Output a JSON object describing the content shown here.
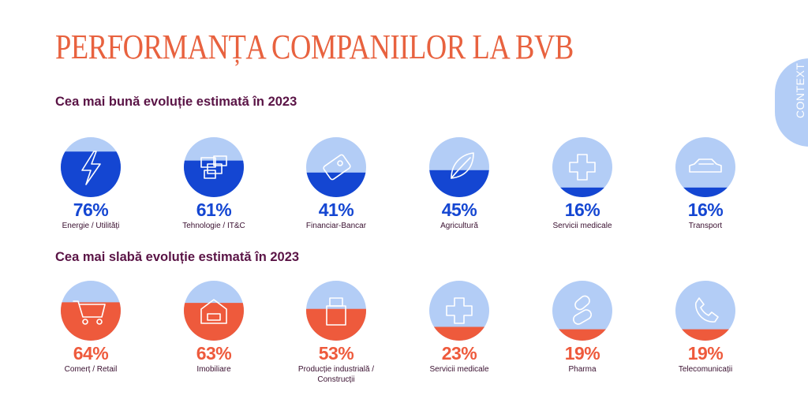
{
  "title": "PERFORMANȚA COMPANIILOR LA BVB",
  "side_tab": "CONTEXT",
  "colors": {
    "title": "#e8623f",
    "subtitle": "#5a1446",
    "circle_bg": "#b3cdf6",
    "best_fill": "#1446d2",
    "worst_fill": "#ee5a3c",
    "icon_stroke": "#ffffff"
  },
  "chart_data": [
    {
      "type": "bar",
      "title": "Cea mai bună evoluție estimată în 2023",
      "unit": "%",
      "ylim": [
        0,
        100
      ],
      "categories": [
        "Energie / Utilități",
        "Tehnologie / IT&C",
        "Financiar-Bancar",
        "Agricultură",
        "Servicii medicale",
        "Transport"
      ],
      "values": [
        76,
        61,
        41,
        45,
        16,
        16
      ],
      "icons": [
        "lightning-icon",
        "servers-icon",
        "credit-card-icon",
        "leaf-icon",
        "medical-cross-icon",
        "car-icon"
      ]
    },
    {
      "type": "bar",
      "title": "Cea mai slabă evoluție estimată în 2023",
      "unit": "%",
      "ylim": [
        0,
        100
      ],
      "categories": [
        "Comerț / Retail",
        "Imobiliare",
        "Producție industrială / Construcții",
        "Servicii medicale",
        "Pharma",
        "Telecomunicații"
      ],
      "values": [
        64,
        63,
        53,
        23,
        19,
        19
      ],
      "icons": [
        "shopping-cart-icon",
        "house-icon",
        "factory-icon",
        "medical-cross-icon",
        "pill-icon",
        "phone-icon"
      ]
    }
  ]
}
